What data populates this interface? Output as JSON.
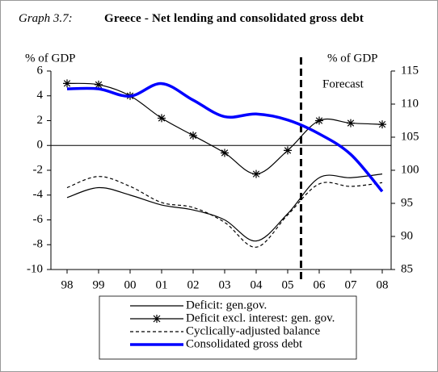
{
  "chart_data": {
    "type": "line",
    "label": "Graph 3.7:",
    "title": "Greece - Net lending and consolidated gross debt",
    "ylabel": "% of GDP",
    "y2label": "% of GDP",
    "annotation": "Forecast",
    "categories": [
      "98",
      "99",
      "00",
      "01",
      "02",
      "03",
      "04",
      "05",
      "06",
      "07",
      "08"
    ],
    "ylim": [
      -10,
      6
    ],
    "yticks": [
      -10,
      -8,
      -6,
      -4,
      -2,
      0,
      2,
      4,
      6
    ],
    "y2lim": [
      85,
      115
    ],
    "y2ticks": [
      85,
      90,
      95,
      100,
      105,
      110,
      115
    ],
    "series": [
      {
        "name": "Deficit: gen.gov.",
        "color": "#000000",
        "style": "solid",
        "values": [
          -4.2,
          -3.4,
          -4.0,
          -4.8,
          -5.2,
          -6.0,
          -7.7,
          -5.5,
          -2.6,
          -2.6,
          -2.3
        ]
      },
      {
        "name": "Deficit excl. interest: gen. gov.",
        "color": "#000000",
        "style": "star",
        "values": [
          5.0,
          4.9,
          4.0,
          2.2,
          0.8,
          -0.6,
          -2.3,
          -0.4,
          2.0,
          1.8,
          1.7
        ]
      },
      {
        "name": "Cyclically-adjusted balance",
        "color": "#000000",
        "style": "dashed",
        "values": [
          -3.4,
          -2.5,
          -3.3,
          -4.6,
          -5.0,
          -6.2,
          -8.2,
          -5.6,
          -3.1,
          -3.3,
          -3.0
        ]
      },
      {
        "name": "Consolidated gross debt",
        "color": "#0000ff",
        "style": "thick",
        "axis": "y2",
        "values": [
          112.3,
          112.3,
          111.2,
          113.1,
          110.6,
          108.1,
          108.5,
          107.6,
          105.5,
          102.4,
          96.8
        ]
      }
    ]
  }
}
